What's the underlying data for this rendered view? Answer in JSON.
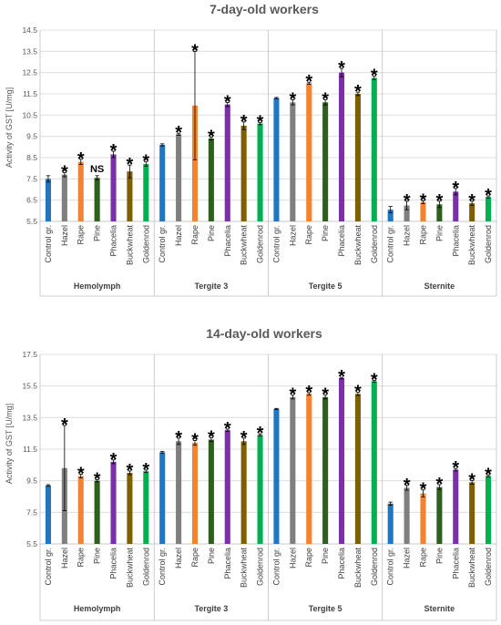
{
  "chart_data": [
    {
      "type": "bar",
      "title": "7-day-old workers",
      "ylabel": "Activity of GST [U/mg]",
      "ylim": [
        5.5,
        14.5
      ],
      "yticks": [
        "5.5",
        "6.5",
        "7.5",
        "8.5",
        "9.5",
        "10.5",
        "11.5",
        "12.5",
        "13.5",
        "14.5"
      ],
      "categories": [
        "Control gr.",
        "Hazel",
        "Rape",
        "Pine",
        "Phacelia",
        "Buckwheat",
        "Goldenrod"
      ],
      "colors": [
        "#1f77c4",
        "#7f7f7f",
        "#f58231",
        "#2e5f1e",
        "#7b2fa8",
        "#7f6000",
        "#00b050"
      ],
      "grid": true,
      "groups": [
        {
          "name": "Hemolymph",
          "values": [
            7.5,
            7.7,
            8.3,
            7.55,
            8.65,
            7.85,
            8.2
          ],
          "errors": [
            0.15,
            0.1,
            0.12,
            0.1,
            0.15,
            0.3,
            0.1
          ],
          "labels": [
            "",
            "*",
            "*",
            "NS",
            "*",
            "*",
            "*"
          ]
        },
        {
          "name": "Tergite 3",
          "values": [
            9.1,
            9.6,
            10.95,
            9.4,
            11.0,
            10.0,
            10.1
          ],
          "errors": [
            0.05,
            0.05,
            2.55,
            0.07,
            0.1,
            0.18,
            0.05
          ],
          "labels": [
            "",
            "*",
            "*",
            "*",
            "*",
            "*",
            "*"
          ]
        },
        {
          "name": "Tergite 5",
          "values": [
            11.3,
            11.1,
            12.0,
            11.1,
            12.5,
            11.5,
            12.25
          ],
          "errors": [
            0.03,
            0.12,
            0.05,
            0.12,
            0.2,
            0.08,
            0.08
          ],
          "labels": [
            "",
            "*",
            "*",
            "*",
            "*",
            "*",
            "*"
          ]
        },
        {
          "name": "Sternite",
          "values": [
            6.05,
            6.25,
            6.4,
            6.3,
            6.9,
            6.35,
            6.65
          ],
          "errors": [
            0.15,
            0.2,
            0.07,
            0.15,
            0.15,
            0.1,
            0.05
          ],
          "labels": [
            "",
            "*",
            "*",
            "*",
            "*",
            "*",
            "*"
          ]
        }
      ]
    },
    {
      "type": "bar",
      "title": "14-day-old workers",
      "ylabel": "Activity of GST [U/mg]",
      "ylim": [
        5.5,
        17.5
      ],
      "yticks": [
        "5.5",
        "7.5",
        "9.5",
        "11.5",
        "13.5",
        "15.5",
        "17.5"
      ],
      "categories": [
        "Control gr.",
        "Hazel",
        "Rape",
        "Pine",
        "Phacelia",
        "Buckwheat",
        "Goldenrod"
      ],
      "colors": [
        "#1f77c4",
        "#7f7f7f",
        "#f58231",
        "#2e5f1e",
        "#7b2fa8",
        "#7f6000",
        "#00b050"
      ],
      "grid": true,
      "groups": [
        {
          "name": "Hemolymph",
          "values": [
            9.2,
            10.3,
            9.8,
            9.5,
            10.7,
            10.0,
            10.1
          ],
          "errors": [
            0.05,
            2.7,
            0.12,
            0.07,
            0.12,
            0.12,
            0.08
          ],
          "labels": [
            "",
            "*",
            "*",
            "*",
            "*",
            "*",
            "*"
          ]
        },
        {
          "name": "Tergite 3",
          "values": [
            11.3,
            12.0,
            11.9,
            12.1,
            12.7,
            12.0,
            12.4
          ],
          "errors": [
            0.05,
            0.2,
            0.15,
            0.12,
            0.07,
            0.2,
            0.07
          ],
          "labels": [
            "",
            "*",
            "*",
            "*",
            "*",
            "*",
            "*"
          ]
        },
        {
          "name": "Tergite 5",
          "values": [
            14.05,
            14.8,
            15.0,
            14.8,
            16.0,
            15.0,
            15.8
          ],
          "errors": [
            0.03,
            0.12,
            0.08,
            0.12,
            0.05,
            0.1,
            0.05
          ],
          "labels": [
            "",
            "*",
            "*",
            "*",
            "*",
            "*",
            "*"
          ]
        },
        {
          "name": "Sternite",
          "values": [
            8.05,
            9.05,
            8.7,
            9.1,
            10.2,
            9.4,
            9.8
          ],
          "errors": [
            0.1,
            0.15,
            0.22,
            0.15,
            0.08,
            0.12,
            0.07
          ],
          "labels": [
            "",
            "*",
            "*",
            "*",
            "*",
            "*",
            "*"
          ]
        }
      ]
    }
  ]
}
